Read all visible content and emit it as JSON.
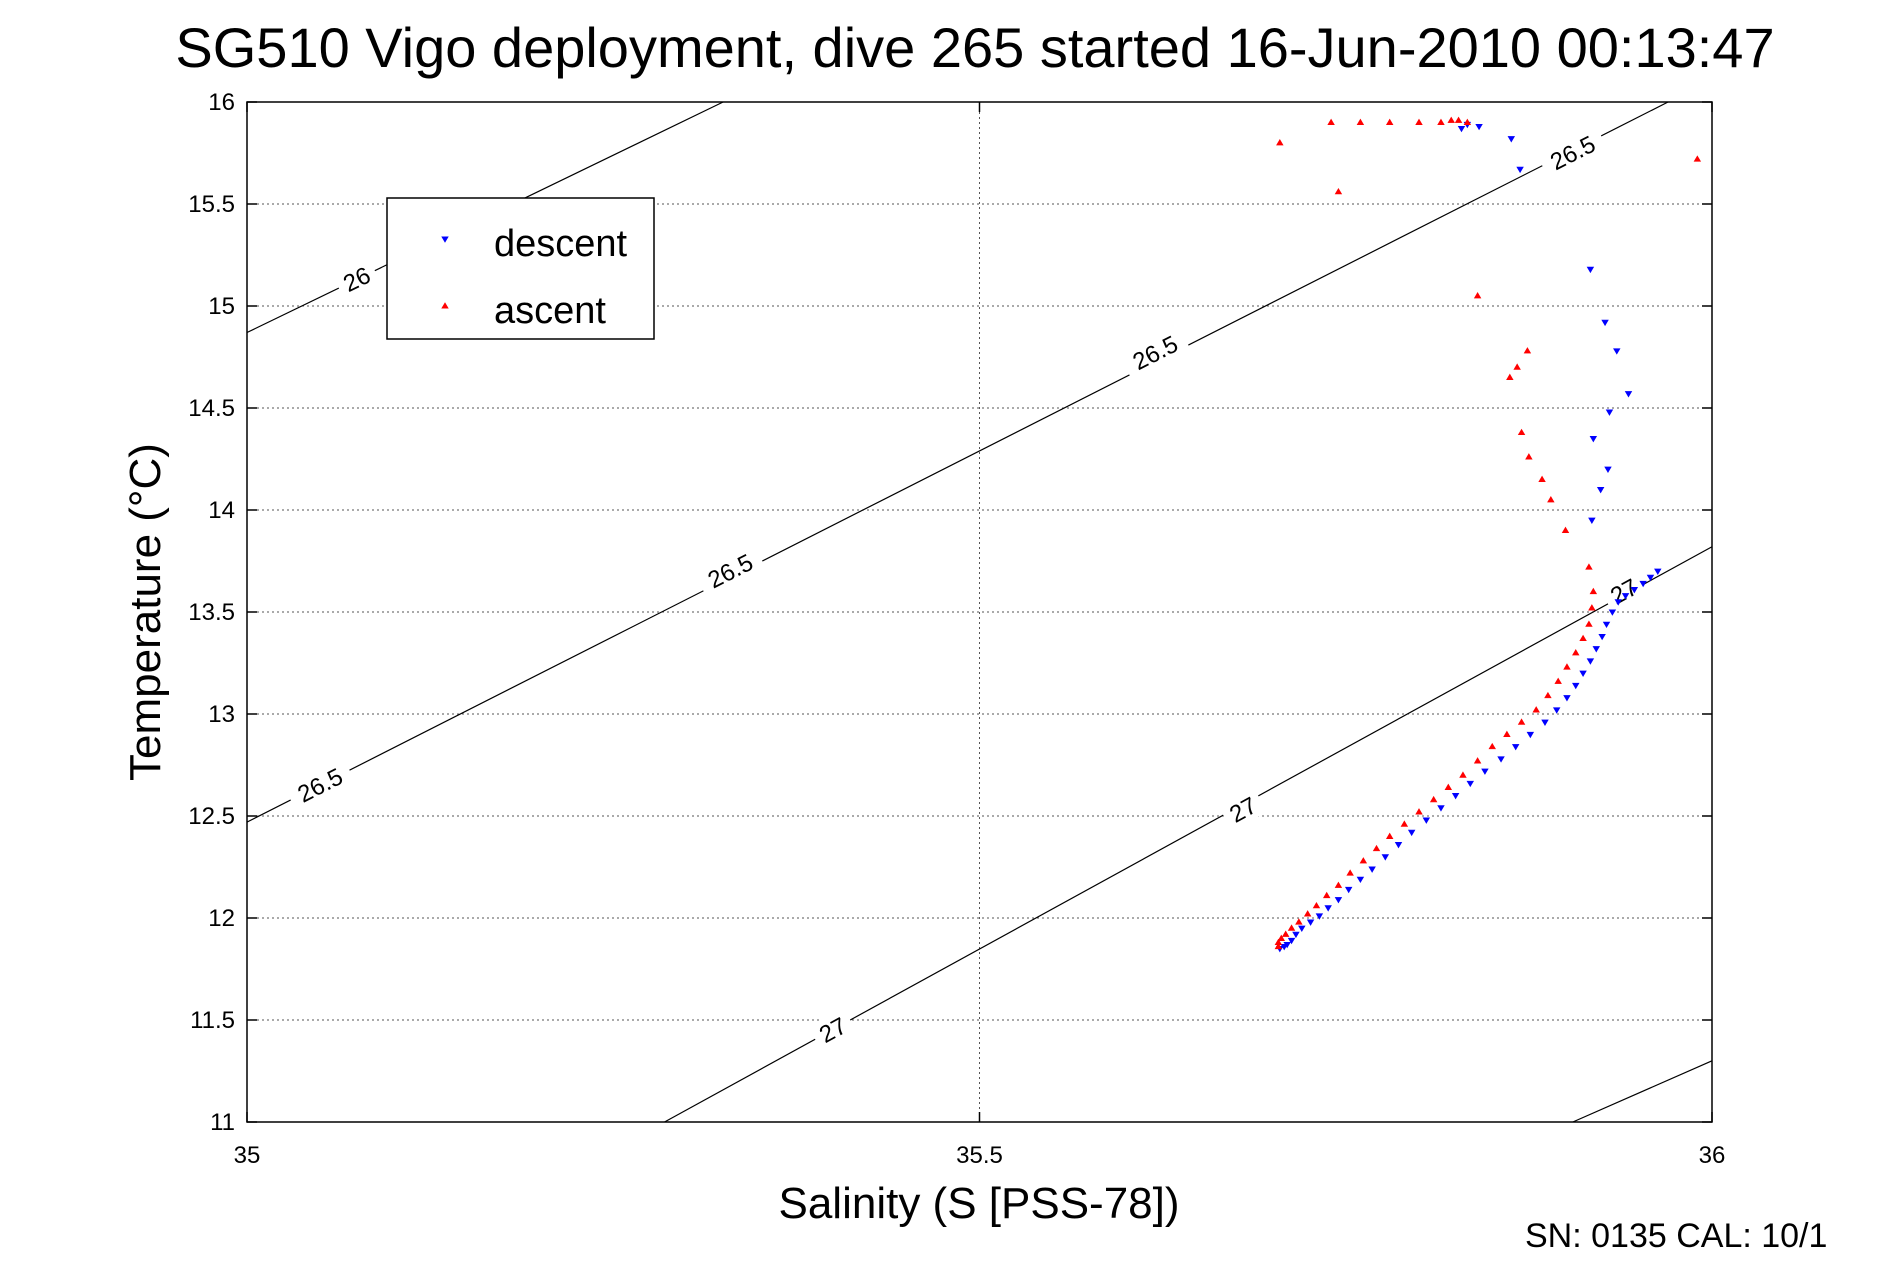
{
  "chart_data": {
    "type": "scatter",
    "title": "SG510 Vigo deployment, dive 265 started 16-Jun-2010 00:13:47",
    "xlabel": "Salinity (S [PSS-78])",
    "ylabel": "Temperature (°C)",
    "xlim": [
      35,
      36
    ],
    "ylim": [
      11,
      16
    ],
    "x_ticks": [
      "35",
      "35.5",
      "36"
    ],
    "y_ticks": [
      "11",
      "11.5",
      "12",
      "12.5",
      "13",
      "13.5",
      "14",
      "14.5",
      "15",
      "15.5",
      "16"
    ],
    "grid": true,
    "legend": {
      "placement": "upper-left",
      "entries": [
        "descent",
        "ascent"
      ]
    },
    "footer": "SN: 0135  CAL: 10/1",
    "contours": [
      {
        "label": "26",
        "start": [
          35.0,
          14.87
        ],
        "end": [
          35.325,
          16.0
        ],
        "label_positions": [
          [
            35.075,
            15.13
          ]
        ]
      },
      {
        "label": "26.5",
        "start": [
          35.0,
          12.47
        ],
        "end": [
          35.97,
          16.0
        ],
        "label_positions": [
          [
            35.05,
            12.65
          ],
          [
            35.33,
            13.7
          ],
          [
            35.62,
            14.77
          ],
          [
            35.905,
            15.75
          ]
        ]
      },
      {
        "label": "27",
        "start": [
          35.285,
          11.0
        ],
        "end": [
          36.0,
          13.82
        ],
        "label_positions": [
          [
            35.4,
            11.45
          ],
          [
            35.68,
            12.53
          ],
          [
            35.94,
            13.6
          ]
        ]
      },
      {
        "label": "",
        "start": [
          35.905,
          11.0
        ],
        "end": [
          36.0,
          11.3
        ],
        "label_positions": []
      }
    ],
    "series": [
      {
        "name": "descent",
        "color": "#0000ff",
        "marker": "triangle-down",
        "points": [
          [
            35.705,
            11.85
          ],
          [
            35.708,
            11.86
          ],
          [
            35.71,
            11.87
          ],
          [
            35.713,
            11.89
          ],
          [
            35.716,
            11.92
          ],
          [
            35.72,
            11.95
          ],
          [
            35.726,
            11.98
          ],
          [
            35.732,
            12.01
          ],
          [
            35.738,
            12.05
          ],
          [
            35.745,
            12.09
          ],
          [
            35.752,
            12.14
          ],
          [
            35.76,
            12.19
          ],
          [
            35.768,
            12.24
          ],
          [
            35.777,
            12.3
          ],
          [
            35.786,
            12.36
          ],
          [
            35.795,
            12.42
          ],
          [
            35.805,
            12.48
          ],
          [
            35.815,
            12.54
          ],
          [
            35.825,
            12.6
          ],
          [
            35.835,
            12.66
          ],
          [
            35.845,
            12.72
          ],
          [
            35.856,
            12.78
          ],
          [
            35.866,
            12.84
          ],
          [
            35.876,
            12.9
          ],
          [
            35.886,
            12.96
          ],
          [
            35.894,
            13.02
          ],
          [
            35.901,
            13.08
          ],
          [
            35.907,
            13.14
          ],
          [
            35.912,
            13.2
          ],
          [
            35.917,
            13.26
          ],
          [
            35.921,
            13.32
          ],
          [
            35.925,
            13.38
          ],
          [
            35.928,
            13.44
          ],
          [
            35.932,
            13.5
          ],
          [
            35.936,
            13.55
          ],
          [
            35.941,
            13.58
          ],
          [
            35.947,
            13.61
          ],
          [
            35.953,
            13.64
          ],
          [
            35.958,
            13.67
          ],
          [
            35.963,
            13.7
          ],
          [
            35.918,
            13.95
          ],
          [
            35.924,
            14.1
          ],
          [
            35.929,
            14.2
          ],
          [
            35.919,
            14.35
          ],
          [
            35.93,
            14.48
          ],
          [
            35.943,
            14.57
          ],
          [
            35.935,
            14.78
          ],
          [
            35.927,
            14.92
          ],
          [
            35.917,
            15.18
          ],
          [
            35.869,
            15.67
          ],
          [
            35.863,
            15.82
          ],
          [
            35.841,
            15.88
          ],
          [
            35.833,
            15.89
          ],
          [
            35.829,
            15.87
          ]
        ]
      },
      {
        "name": "ascent",
        "color": "#ff0000",
        "marker": "triangle-up",
        "points": [
          [
            35.704,
            11.86
          ],
          [
            35.704,
            11.88
          ],
          [
            35.706,
            11.9
          ],
          [
            35.709,
            11.92
          ],
          [
            35.713,
            11.95
          ],
          [
            35.718,
            11.98
          ],
          [
            35.724,
            12.02
          ],
          [
            35.73,
            12.06
          ],
          [
            35.737,
            12.11
          ],
          [
            35.745,
            12.16
          ],
          [
            35.753,
            12.22
          ],
          [
            35.762,
            12.28
          ],
          [
            35.771,
            12.34
          ],
          [
            35.78,
            12.4
          ],
          [
            35.79,
            12.46
          ],
          [
            35.8,
            12.52
          ],
          [
            35.81,
            12.58
          ],
          [
            35.82,
            12.64
          ],
          [
            35.83,
            12.7
          ],
          [
            35.84,
            12.77
          ],
          [
            35.85,
            12.84
          ],
          [
            35.86,
            12.9
          ],
          [
            35.87,
            12.96
          ],
          [
            35.88,
            13.02
          ],
          [
            35.888,
            13.09
          ],
          [
            35.895,
            13.16
          ],
          [
            35.901,
            13.23
          ],
          [
            35.907,
            13.3
          ],
          [
            35.912,
            13.37
          ],
          [
            35.916,
            13.44
          ],
          [
            35.918,
            13.52
          ],
          [
            35.919,
            13.6
          ],
          [
            35.916,
            13.72
          ],
          [
            35.9,
            13.9
          ],
          [
            35.89,
            14.05
          ],
          [
            35.884,
            14.15
          ],
          [
            35.875,
            14.26
          ],
          [
            35.87,
            14.38
          ],
          [
            35.862,
            14.65
          ],
          [
            35.867,
            14.7
          ],
          [
            35.874,
            14.78
          ],
          [
            35.84,
            15.05
          ],
          [
            35.745,
            15.56
          ],
          [
            35.705,
            15.8
          ],
          [
            35.74,
            15.9
          ],
          [
            35.76,
            15.9
          ],
          [
            35.78,
            15.9
          ],
          [
            35.8,
            15.9
          ],
          [
            35.815,
            15.9
          ],
          [
            35.822,
            15.91
          ],
          [
            35.827,
            15.91
          ],
          [
            35.833,
            15.9
          ],
          [
            35.99,
            15.72
          ]
        ]
      }
    ]
  }
}
